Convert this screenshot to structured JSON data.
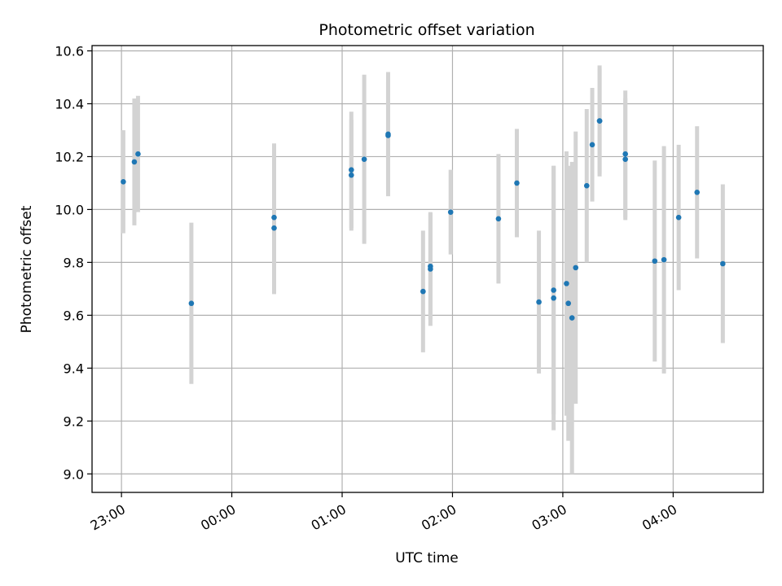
{
  "chart_data": {
    "type": "scatter",
    "title": "Photometric offset variation",
    "xlabel": "UTC time",
    "ylabel": "Photometric offset",
    "x_axis_kind": "time",
    "xlim": [
      "22:44",
      "04:49"
    ],
    "ylim": [
      8.93,
      10.62
    ],
    "x_ticks": [
      "23:00",
      "00:00",
      "01:00",
      "02:00",
      "03:00",
      "04:00"
    ],
    "y_ticks": [
      9.0,
      9.2,
      9.4,
      9.6,
      9.8,
      10.0,
      10.2,
      10.4,
      10.6
    ],
    "y_tick_labels": [
      "9.0",
      "9.2",
      "9.4",
      "9.6",
      "9.8",
      "10.0",
      "10.2",
      "10.4",
      "10.6"
    ],
    "grid": true,
    "marker_color": "#1f77b4",
    "errorbar_color": "#d3d3d3",
    "series": [
      {
        "points": [
          {
            "x": "23:01",
            "y": 10.105,
            "yerr": 0.195
          },
          {
            "x": "23:07",
            "y": 10.18,
            "yerr": 0.24
          },
          {
            "x": "23:09",
            "y": 10.21,
            "yerr": 0.22
          },
          {
            "x": "23:38",
            "y": 9.645,
            "yerr": 0.305
          },
          {
            "x": "00:23",
            "y": 9.97,
            "yerr": 0.28
          },
          {
            "x": "00:23",
            "y": 9.93,
            "yerr": 0.25
          },
          {
            "x": "01:05",
            "y": 10.15,
            "yerr": 0.22
          },
          {
            "x": "01:05",
            "y": 10.13,
            "yerr": 0.21
          },
          {
            "x": "01:12",
            "y": 10.19,
            "yerr": 0.32
          },
          {
            "x": "01:25",
            "y": 10.285,
            "yerr": 0.235
          },
          {
            "x": "01:25",
            "y": 10.28,
            "yerr": 0.2
          },
          {
            "x": "01:44",
            "y": 9.69,
            "yerr": 0.23
          },
          {
            "x": "01:48",
            "y": 9.785,
            "yerr": 0.2
          },
          {
            "x": "01:48",
            "y": 9.775,
            "yerr": 0.215
          },
          {
            "x": "01:59",
            "y": 9.99,
            "yerr": 0.16
          },
          {
            "x": "02:25",
            "y": 9.965,
            "yerr": 0.245
          },
          {
            "x": "02:35",
            "y": 10.1,
            "yerr": 0.205
          },
          {
            "x": "02:47",
            "y": 9.65,
            "yerr": 0.27
          },
          {
            "x": "02:55",
            "y": 9.695,
            "yerr": 0.47
          },
          {
            "x": "02:55",
            "y": 9.665,
            "yerr": 0.5
          },
          {
            "x": "03:02",
            "y": 9.72,
            "yerr": 0.5
          },
          {
            "x": "03:03",
            "y": 9.645,
            "yerr": 0.52
          },
          {
            "x": "03:05",
            "y": 9.59,
            "yerr": 0.59
          },
          {
            "x": "03:07",
            "y": 9.78,
            "yerr": 0.515
          },
          {
            "x": "03:13",
            "y": 10.09,
            "yerr": 0.29
          },
          {
            "x": "03:16",
            "y": 10.245,
            "yerr": 0.215
          },
          {
            "x": "03:20",
            "y": 10.335,
            "yerr": 0.2
          },
          {
            "x": "03:20",
            "y": 10.335,
            "yerr": 0.21
          },
          {
            "x": "03:34",
            "y": 10.21,
            "yerr": 0.24
          },
          {
            "x": "03:34",
            "y": 10.19,
            "yerr": 0.23
          },
          {
            "x": "03:50",
            "y": 9.805,
            "yerr": 0.38
          },
          {
            "x": "03:55",
            "y": 9.81,
            "yerr": 0.43
          },
          {
            "x": "04:03",
            "y": 9.97,
            "yerr": 0.275
          },
          {
            "x": "04:13",
            "y": 10.065,
            "yerr": 0.25
          },
          {
            "x": "04:27",
            "y": 9.795,
            "yerr": 0.3
          }
        ]
      }
    ]
  }
}
